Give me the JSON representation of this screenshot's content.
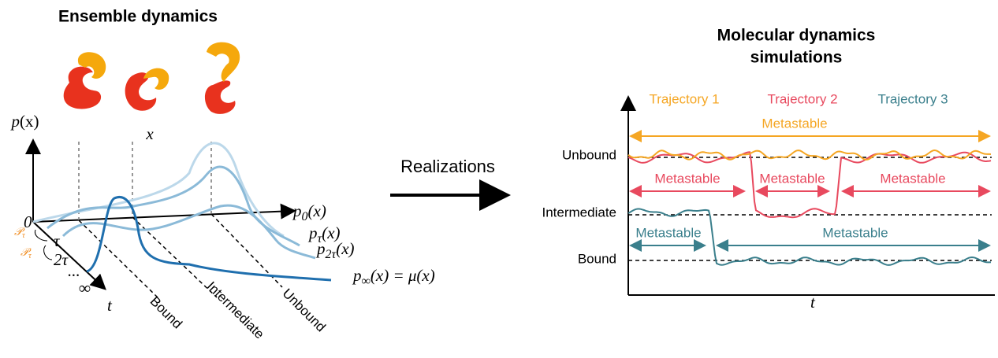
{
  "left": {
    "title": "Ensemble dynamics",
    "y_label": {
      "base": "p",
      "arg": "(x)"
    },
    "x_label": "x",
    "origin": "0",
    "curves": [
      {
        "base": "p",
        "sub": "0",
        "arg": "(x)"
      },
      {
        "base": "p",
        "sub": "τ",
        "arg": "(x)"
      },
      {
        "base": "p",
        "sub": "2τ",
        "arg": "(x)"
      },
      {
        "base": "p",
        "sub": "∞",
        "arg": "(x) = μ(x)"
      }
    ],
    "time_ticks": [
      "τ",
      "2τ",
      "...",
      "∞"
    ],
    "time_label": "t",
    "operators": [
      {
        "base": "𝒫",
        "sub": "τ"
      },
      {
        "base": "𝒫",
        "sub": "τ"
      }
    ],
    "states": [
      "Bound",
      "Intermediate",
      "Unbound"
    ]
  },
  "middle": {
    "label": "Realizations"
  },
  "right": {
    "title": [
      "Molecular dynamics",
      "simulations"
    ],
    "trajectories": [
      "Trajectory 1",
      "Trajectory 2",
      "Trajectory 3"
    ],
    "states": [
      "Unbound",
      "Intermediate",
      "Bound"
    ],
    "metastable": [
      "Metastable",
      "Metastable",
      "Metastable",
      "Metastable",
      "Metastable",
      "Metastable"
    ],
    "time_label": "t"
  }
}
